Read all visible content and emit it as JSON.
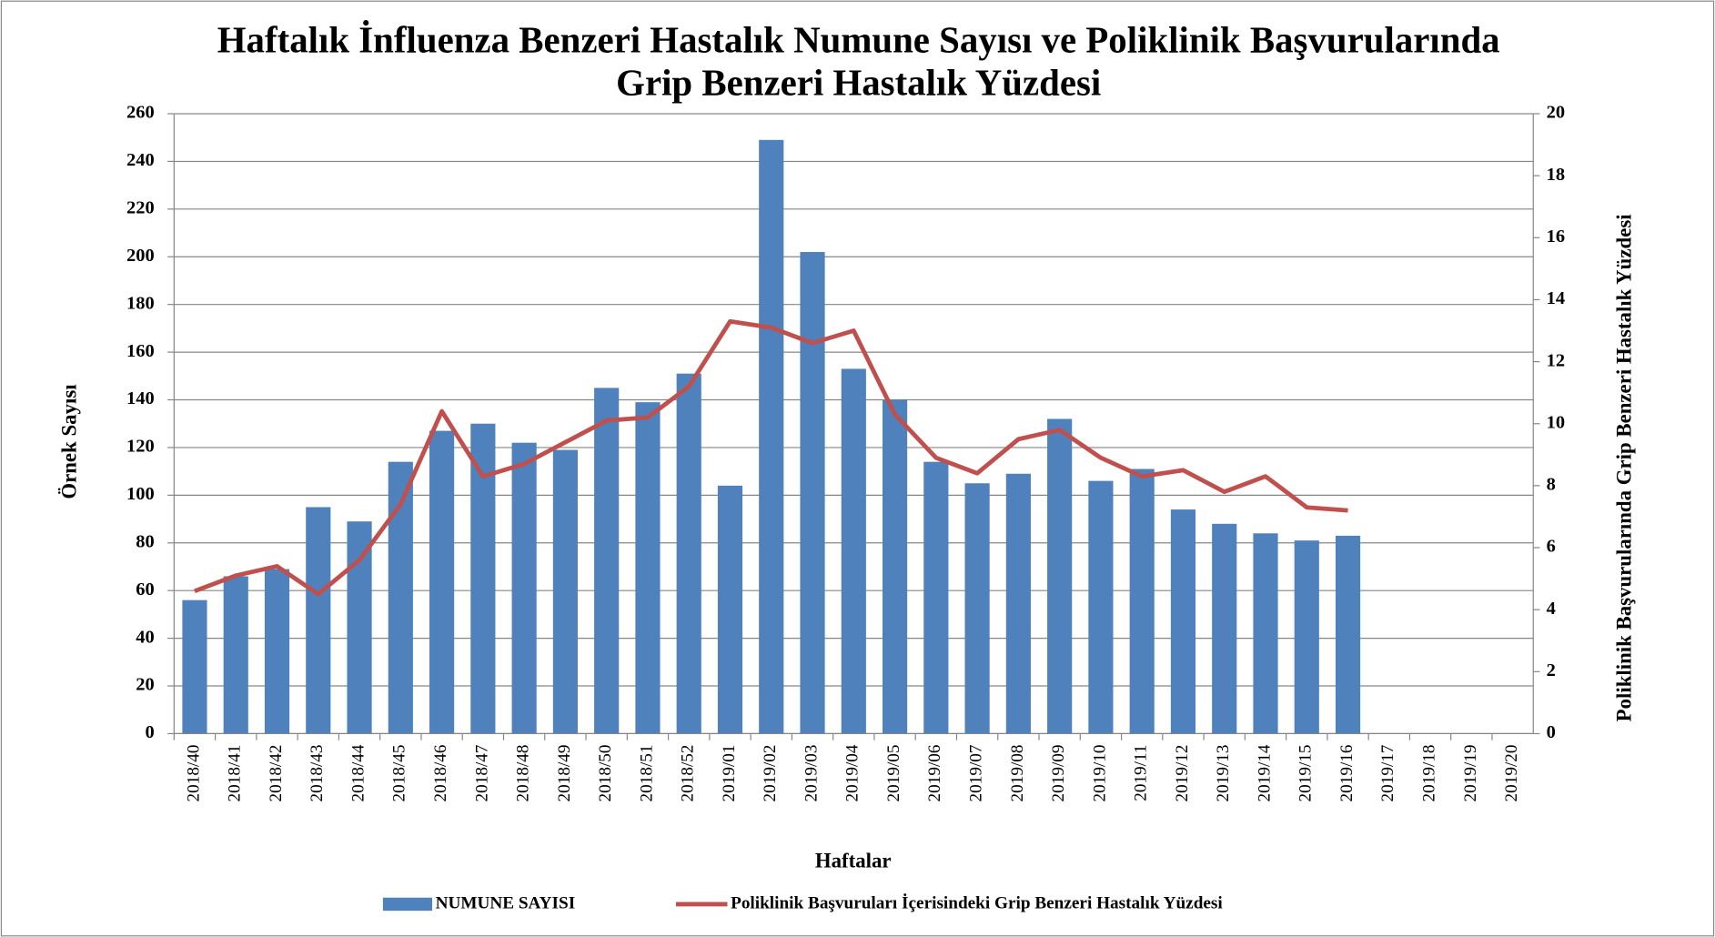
{
  "chart_data": {
    "type": "bar",
    "title": [
      "Haftalık İnfluenza Benzeri Hastalık Numune Sayısı ve Poliklinik Başvurularında",
      "Grip Benzeri Hastalık Yüzdesi"
    ],
    "xlabel": "Haftalar",
    "ylabel": "Örnek Sayısı",
    "y2label": "Poliklinik Başvurularında Grip Benzeri Hastalık Yüzdesi",
    "categories": [
      "2018/40",
      "2018/41",
      "2018/42",
      "2018/43",
      "2018/44",
      "2018/45",
      "2018/46",
      "2018/47",
      "2018/48",
      "2018/49",
      "2018/50",
      "2018/51",
      "2018/52",
      "2019/01",
      "2019/02",
      "2019/03",
      "2019/04",
      "2019/05",
      "2019/06",
      "2019/07",
      "2019/08",
      "2019/09",
      "2019/10",
      "2019/11",
      "2019/12",
      "2019/13",
      "2019/14",
      "2019/15",
      "2019/16",
      "2019/17",
      "2019/18",
      "2019/19",
      "2019/20"
    ],
    "series": [
      {
        "name": "NUMUNE SAYISI",
        "type": "bar",
        "color": "#4f81bd",
        "values": [
          56,
          66,
          69,
          95,
          89,
          114,
          127,
          130,
          122,
          119,
          145,
          139,
          151,
          104,
          249,
          202,
          153,
          140,
          114,
          105,
          109,
          132,
          106,
          111,
          94,
          88,
          84,
          81,
          83,
          null,
          null,
          null,
          null
        ]
      },
      {
        "name": "Poliklinik Başvuruları İçerisindeki Grip Benzeri Hastalık Yüzdesi",
        "type": "line",
        "axis": "y2",
        "color": "#c0504d",
        "values": [
          4.6,
          5.1,
          5.4,
          4.5,
          5.6,
          7.4,
          10.4,
          8.3,
          8.7,
          9.4,
          10.1,
          10.2,
          11.2,
          13.3,
          13.1,
          12.6,
          13.0,
          10.3,
          8.9,
          8.4,
          9.5,
          9.8,
          8.9,
          8.3,
          8.5,
          7.8,
          8.3,
          7.3,
          7.2,
          null,
          null,
          null,
          null
        ]
      }
    ],
    "ylim": [
      0,
      260
    ],
    "yticks": [
      0,
      20,
      40,
      60,
      80,
      100,
      120,
      140,
      160,
      180,
      200,
      220,
      240,
      260
    ],
    "y2lim": [
      0,
      20
    ],
    "y2ticks": [
      0,
      2,
      4,
      6,
      8,
      10,
      12,
      14,
      16,
      18,
      20
    ],
    "grid": true,
    "legend": "bottom"
  }
}
